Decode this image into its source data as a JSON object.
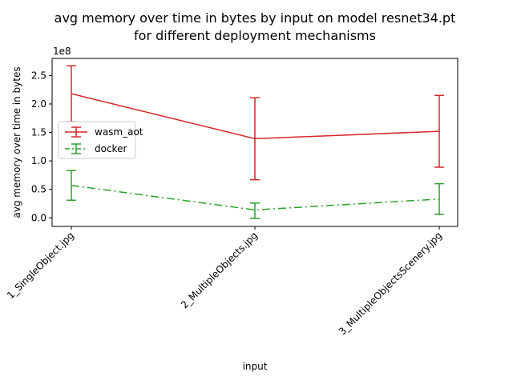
{
  "chart_data": {
    "type": "line",
    "title_line1": "avg memory over time in bytes by input on model resnet34.pt",
    "title_line2": "for different deployment mechanisms",
    "xlabel": "input",
    "ylabel": "avg memory over time in bytes",
    "y_offset_label": "1e8",
    "categories": [
      "1_SingleObject.jpg",
      "2_MultipleObjects.jpg",
      "3_MultipleObjectsScenery.jpg"
    ],
    "ylim": [
      -0.15,
      2.8
    ],
    "y_ticks": [
      0.0,
      0.5,
      1.0,
      1.5,
      2.0,
      2.5
    ],
    "y_tick_labels": [
      "0.0",
      "0.5",
      "1.0",
      "1.5",
      "2.0",
      "2.5"
    ],
    "y_unit_scale": 100000000,
    "grid": false,
    "legend_position": "center-left",
    "series": [
      {
        "name": "wasm_aot",
        "color": "#d62728",
        "line_style": "solid",
        "values": [
          2.18,
          1.39,
          1.52
        ],
        "err_low": [
          1.69,
          0.67,
          0.89
        ],
        "err_high": [
          2.67,
          2.11,
          2.15
        ]
      },
      {
        "name": "docker",
        "color": "#2ca02c",
        "line_style": "dashdot",
        "values": [
          0.57,
          0.14,
          0.33
        ],
        "err_low": [
          0.31,
          -0.01,
          0.06
        ],
        "err_high": [
          0.83,
          0.26,
          0.6
        ]
      }
    ]
  }
}
